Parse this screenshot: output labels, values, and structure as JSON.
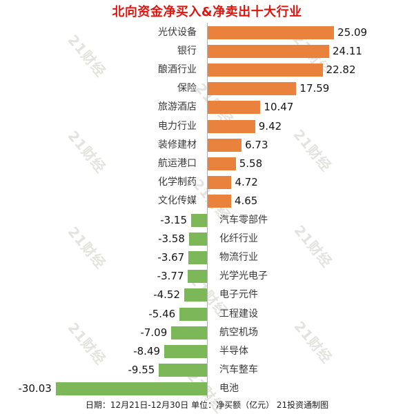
{
  "title": "北向资金净买入&净卖出十大行业",
  "footer": "日期：12月21日-12月30日 单位：净买额（亿元） 21投资通制图",
  "watermark": {
    "text": "21财经",
    "color": "#e3e3df"
  },
  "colors": {
    "positive": "#e8823c",
    "negative": "#7cb857",
    "title": "#e3120b",
    "axis": "#b0b0b0",
    "value_text": "#141414",
    "category_text": "#3a3a3a",
    "background": "#ffffff"
  },
  "chart_data": {
    "type": "bar",
    "orientation": "horizontal-diverging",
    "title": "北向资金净买入&净卖出十大行业",
    "unit": "净买额（亿元）",
    "date_range": "12月21日-12月30日",
    "credit": "21投资通制图",
    "categories": [
      "光伏设备",
      "银行",
      "酿酒行业",
      "保险",
      "旅游酒店",
      "电力行业",
      "装修建材",
      "航运港口",
      "化学制药",
      "文化传媒",
      "汽车零部件",
      "化纤行业",
      "物流行业",
      "光学光电子",
      "电子元件",
      "工程建设",
      "航空机场",
      "半导体",
      "汽车整车",
      "电池"
    ],
    "values": [
      25.09,
      24.11,
      22.82,
      17.59,
      10.47,
      9.42,
      6.73,
      5.58,
      4.72,
      4.65,
      -3.15,
      -3.58,
      -3.67,
      -3.77,
      -4.52,
      -5.46,
      -7.09,
      -8.49,
      -9.55,
      -30.03
    ],
    "xlim": [
      -30.03,
      25.09
    ],
    "grid": false,
    "legend": false
  }
}
